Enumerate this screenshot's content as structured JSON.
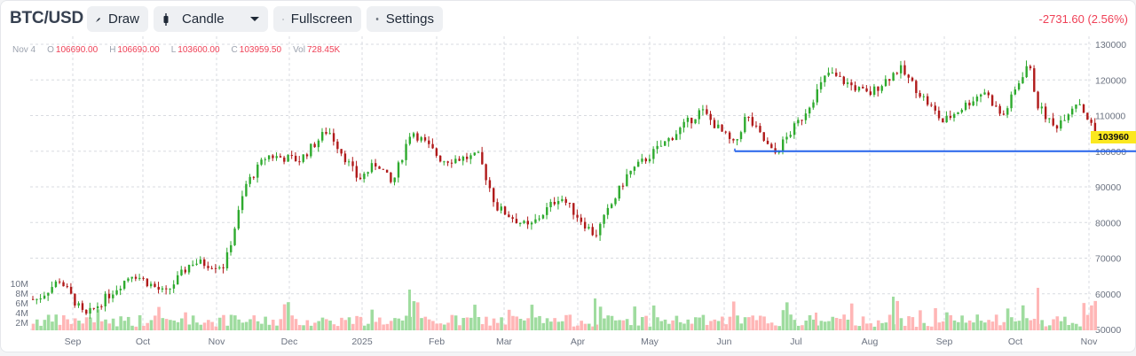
{
  "header": {
    "symbol": "BTC/USD",
    "buttons": {
      "draw": "Draw",
      "chart_type": "Candle",
      "fullscreen": "Fullscreen",
      "settings": "Settings"
    },
    "change": "-2731.60 (2.56%)"
  },
  "ohlc": {
    "date": "Nov 4",
    "open_label": "O",
    "open": "106690.00",
    "high_label": "H",
    "high": "106690.00",
    "low_label": "L",
    "low": "103600.00",
    "close_label": "C",
    "close": "103959.50",
    "vol_label": "Vol",
    "vol": "728.45K"
  },
  "last_price_tag": "103960",
  "colors": {
    "up": "#2eaa2e",
    "down": "#b01a1a",
    "vol_up": "#9fdc9f",
    "vol_down": "#ffb6b6",
    "line": "#2563eb",
    "accent_red": "#ef4056",
    "tag": "#fbe81f"
  },
  "chart_data": {
    "type": "candlestick",
    "title": "BTC/USD",
    "xlabel": "",
    "ylabel": "",
    "ylim": [
      50000,
      130000
    ],
    "y_ticks": [
      130000,
      120000,
      110000,
      100000,
      90000,
      80000,
      70000,
      60000,
      50000
    ],
    "x_ticks": [
      "Sep",
      "Oct",
      "Nov",
      "Dec",
      "2025",
      "Feb",
      "Mar",
      "Apr",
      "May",
      "Jun",
      "Jul",
      "Aug",
      "Sep",
      "Oct",
      "Nov"
    ],
    "volume_ticks": [
      "10M",
      "8M",
      "6M",
      "4M",
      "2M"
    ],
    "grid": true,
    "horizontal_line": {
      "price": 100000,
      "start": "Jun 2"
    },
    "last_price": 103960,
    "approx_close_path": [
      {
        "date": "Aug 15",
        "close": 58500
      },
      {
        "date": "Aug 25",
        "close": 64000
      },
      {
        "date": "Sep 6",
        "close": 53500
      },
      {
        "date": "Sep 27",
        "close": 65800
      },
      {
        "date": "Oct 10",
        "close": 60000
      },
      {
        "date": "Oct 21",
        "close": 68900
      },
      {
        "date": "Nov 4",
        "close": 67800
      },
      {
        "date": "Nov 13",
        "close": 90500
      },
      {
        "date": "Nov 22",
        "close": 98800
      },
      {
        "date": "Dec 5",
        "close": 97500
      },
      {
        "date": "Dec 17",
        "close": 106100
      },
      {
        "date": "Dec 30",
        "close": 92000
      },
      {
        "date": "Jan 7",
        "close": 96900
      },
      {
        "date": "Jan 13",
        "close": 90500
      },
      {
        "date": "Jan 21",
        "close": 106000
      },
      {
        "date": "Feb 3",
        "close": 97500
      },
      {
        "date": "Feb 20",
        "close": 98500
      },
      {
        "date": "Feb 28",
        "close": 84300
      },
      {
        "date": "Mar 11",
        "close": 78500
      },
      {
        "date": "Mar 24",
        "close": 87500
      },
      {
        "date": "Apr 8",
        "close": 76300
      },
      {
        "date": "Apr 22",
        "close": 93500
      },
      {
        "date": "May 8",
        "close": 103000
      },
      {
        "date": "May 22",
        "close": 111500
      },
      {
        "date": "Jun 5",
        "close": 101500
      },
      {
        "date": "Jun 10",
        "close": 110000
      },
      {
        "date": "Jun 22",
        "close": 99000
      },
      {
        "date": "Jul 3",
        "close": 109500
      },
      {
        "date": "Jul 14",
        "close": 122000
      },
      {
        "date": "Jul 31",
        "close": 115800
      },
      {
        "date": "Aug 13",
        "close": 123300
      },
      {
        "date": "Aug 31",
        "close": 108200
      },
      {
        "date": "Sep 18",
        "close": 117000
      },
      {
        "date": "Sep 26",
        "close": 109500
      },
      {
        "date": "Oct 6",
        "close": 125000
      },
      {
        "date": "Oct 10",
        "close": 113000
      },
      {
        "date": "Oct 17",
        "close": 106500
      },
      {
        "date": "Oct 27",
        "close": 114500
      },
      {
        "date": "Nov 4",
        "close": 103960
      }
    ]
  }
}
